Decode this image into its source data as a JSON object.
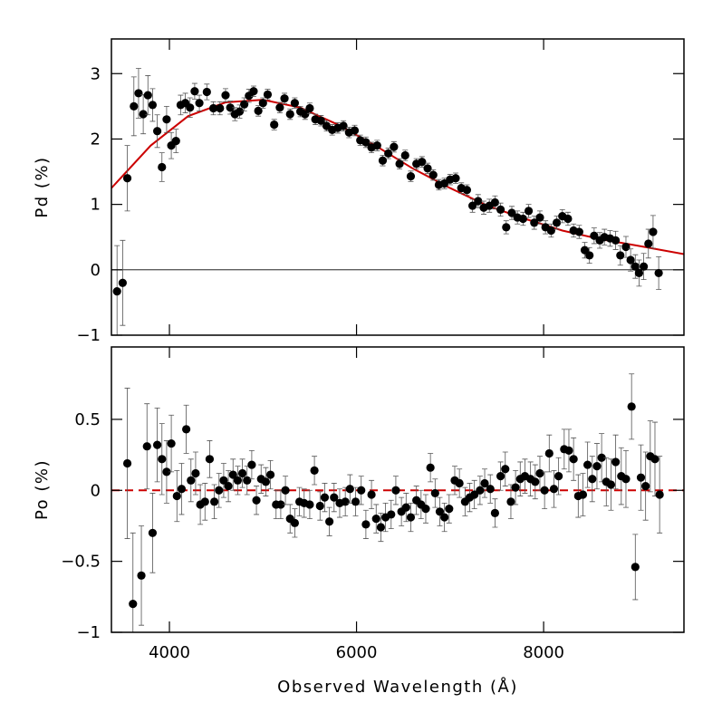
{
  "chart_data": [
    {
      "type": "scatter",
      "ylabel": "Pd (%)",
      "xlim": [
        3380,
        9500
      ],
      "ylim": [
        -1,
        3.53
      ],
      "xticks": [
        4000,
        6000,
        8000
      ],
      "show_xtick_labels": false,
      "yticks": [
        {
          "value": -1,
          "label": "−1"
        },
        0,
        1,
        2,
        3
      ],
      "hline": 0,
      "color": "#000000",
      "x": [
        3440,
        3500,
        3550,
        3620,
        3670,
        3720,
        3770,
        3820,
        3870,
        3920,
        3970,
        4020,
        4070,
        4120,
        4170,
        4220,
        4270,
        4320,
        4400,
        4470,
        4540,
        4600,
        4650,
        4700,
        4750,
        4800,
        4850,
        4900,
        4950,
        5000,
        5050,
        5120,
        5180,
        5230,
        5290,
        5340,
        5400,
        5450,
        5500,
        5560,
        5620,
        5680,
        5740,
        5800,
        5860,
        5920,
        5980,
        6040,
        6100,
        6160,
        6220,
        6280,
        6340,
        6400,
        6460,
        6520,
        6580,
        6640,
        6700,
        6760,
        6820,
        6880,
        6940,
        7000,
        7060,
        7120,
        7180,
        7240,
        7300,
        7360,
        7420,
        7480,
        7540,
        7600,
        7660,
        7720,
        7780,
        7840,
        7900,
        7960,
        8020,
        8080,
        8140,
        8200,
        8260,
        8320,
        8380,
        8440,
        8490,
        8540,
        8600,
        8650,
        8710,
        8770,
        8820,
        8880,
        8930,
        8980,
        9020,
        9070,
        9120,
        9170,
        9230
      ],
      "values": [
        -0.33,
        -0.2,
        1.4,
        2.5,
        2.7,
        2.38,
        2.67,
        2.52,
        2.12,
        1.57,
        2.3,
        1.9,
        1.97,
        2.52,
        2.55,
        2.48,
        2.73,
        2.55,
        2.72,
        2.47,
        2.47,
        2.67,
        2.48,
        2.38,
        2.42,
        2.53,
        2.66,
        2.73,
        2.43,
        2.55,
        2.68,
        2.22,
        2.48,
        2.62,
        2.38,
        2.55,
        2.42,
        2.38,
        2.47,
        2.3,
        2.28,
        2.2,
        2.14,
        2.17,
        2.2,
        2.1,
        2.13,
        1.98,
        1.95,
        1.87,
        1.9,
        1.67,
        1.78,
        1.88,
        1.62,
        1.75,
        1.43,
        1.62,
        1.65,
        1.55,
        1.45,
        1.3,
        1.32,
        1.38,
        1.4,
        1.25,
        1.22,
        0.98,
        1.05,
        0.95,
        0.98,
        1.03,
        0.92,
        0.65,
        0.87,
        0.8,
        0.78,
        0.9,
        0.72,
        0.8,
        0.65,
        0.6,
        0.72,
        0.82,
        0.78,
        0.6,
        0.58,
        0.3,
        0.22,
        0.52,
        0.45,
        0.5,
        0.48,
        0.45,
        0.22,
        0.35,
        0.15,
        0.05,
        -0.05,
        0.05,
        0.4,
        0.58,
        -0.05
      ],
      "errors": [
        0.7,
        0.65,
        0.5,
        0.45,
        0.38,
        0.3,
        0.3,
        0.25,
        0.25,
        0.22,
        0.2,
        0.2,
        0.18,
        0.15,
        0.15,
        0.15,
        0.12,
        0.12,
        0.12,
        0.1,
        0.1,
        0.1,
        0.1,
        0.1,
        0.1,
        0.1,
        0.1,
        0.08,
        0.08,
        0.08,
        0.08,
        0.08,
        0.08,
        0.08,
        0.08,
        0.08,
        0.08,
        0.08,
        0.08,
        0.08,
        0.08,
        0.08,
        0.08,
        0.08,
        0.08,
        0.08,
        0.08,
        0.08,
        0.08,
        0.08,
        0.08,
        0.08,
        0.08,
        0.08,
        0.08,
        0.08,
        0.08,
        0.08,
        0.08,
        0.08,
        0.08,
        0.08,
        0.08,
        0.08,
        0.08,
        0.08,
        0.08,
        0.1,
        0.1,
        0.1,
        0.1,
        0.1,
        0.1,
        0.1,
        0.1,
        0.1,
        0.1,
        0.1,
        0.1,
        0.1,
        0.1,
        0.1,
        0.1,
        0.1,
        0.1,
        0.1,
        0.1,
        0.12,
        0.12,
        0.12,
        0.12,
        0.12,
        0.12,
        0.14,
        0.15,
        0.16,
        0.17,
        0.18,
        0.2,
        0.2,
        0.22,
        0.25,
        0.25
      ],
      "model": {
        "color": "#cc0000",
        "style": "solid",
        "x": [
          3380,
          3800,
          4200,
          4600,
          5000,
          5400,
          5800,
          6200,
          6600,
          7000,
          7400,
          7800,
          8200,
          8600,
          9000,
          9500
        ],
        "values": [
          1.25,
          1.9,
          2.35,
          2.56,
          2.6,
          2.48,
          2.22,
          1.9,
          1.55,
          1.25,
          0.98,
          0.78,
          0.6,
          0.47,
          0.37,
          0.24
        ]
      }
    },
    {
      "type": "scatter",
      "ylabel": "Po (%)",
      "xlabel": "Observed Wavelength (Å)",
      "xlim": [
        3380,
        9500
      ],
      "ylim": [
        -1,
        1.01
      ],
      "xticks": [
        4000,
        6000,
        8000
      ],
      "show_xtick_labels": true,
      "yticks": [
        {
          "value": -1,
          "label": "−1"
        },
        {
          "value": -0.5,
          "label": "−0.5"
        },
        0,
        0.5
      ],
      "color": "#000000",
      "x": [
        3550,
        3610,
        3700,
        3760,
        3820,
        3870,
        3920,
        3970,
        4020,
        4080,
        4130,
        4180,
        4230,
        4280,
        4330,
        4380,
        4430,
        4480,
        4530,
        4580,
        4630,
        4680,
        4730,
        4780,
        4830,
        4880,
        4930,
        4980,
        5030,
        5080,
        5140,
        5190,
        5240,
        5290,
        5340,
        5390,
        5440,
        5500,
        5550,
        5610,
        5660,
        5710,
        5760,
        5820,
        5880,
        5930,
        5990,
        6050,
        6100,
        6160,
        6210,
        6260,
        6310,
        6370,
        6420,
        6480,
        6530,
        6580,
        6640,
        6690,
        6740,
        6790,
        6840,
        6890,
        6940,
        6990,
        7050,
        7100,
        7160,
        7210,
        7260,
        7320,
        7370,
        7430,
        7480,
        7540,
        7590,
        7650,
        7700,
        7750,
        7800,
        7860,
        7910,
        7960,
        8010,
        8060,
        8110,
        8160,
        8220,
        8270,
        8320,
        8370,
        8420,
        8470,
        8520,
        8570,
        8620,
        8670,
        8720,
        8770,
        8830,
        8880,
        8940,
        8980,
        9040,
        9090,
        9140,
        9190,
        9240
      ],
      "values": [
        0.19,
        -0.8,
        -0.6,
        0.31,
        -0.3,
        0.32,
        0.22,
        0.13,
        0.33,
        -0.04,
        0.01,
        0.43,
        0.07,
        0.12,
        -0.1,
        -0.08,
        0.22,
        -0.08,
        0,
        0.07,
        0.03,
        0.11,
        0.07,
        0.12,
        0.07,
        0.18,
        -0.07,
        0.08,
        0.06,
        0.11,
        -0.1,
        -0.1,
        0,
        -0.2,
        -0.23,
        -0.08,
        -0.09,
        -0.1,
        0.14,
        -0.11,
        -0.05,
        -0.22,
        -0.05,
        -0.09,
        -0.08,
        0.01,
        -0.08,
        0,
        -0.24,
        -0.03,
        -0.2,
        -0.26,
        -0.19,
        -0.17,
        0,
        -0.15,
        -0.12,
        -0.19,
        -0.07,
        -0.1,
        -0.13,
        0.16,
        -0.02,
        -0.15,
        -0.19,
        -0.13,
        0.07,
        0.05,
        -0.08,
        -0.05,
        -0.03,
        0,
        0.05,
        0.01,
        -0.16,
        0.1,
        0.15,
        -0.08,
        0.02,
        0.08,
        0.1,
        0.08,
        0.06,
        0.12,
        0,
        0.26,
        0.01,
        0.1,
        0.29,
        0.28,
        0.22,
        -0.04,
        -0.03,
        0.18,
        0.08,
        0.17,
        0.23,
        0.06,
        0.04,
        0.2,
        0.1,
        0.08,
        0.59,
        -0.54,
        0.09,
        0.03,
        0.24,
        0.22,
        -0.03
      ],
      "errors": [
        0.53,
        0.5,
        0.35,
        0.3,
        0.28,
        0.26,
        0.25,
        0.22,
        0.2,
        0.18,
        0.18,
        0.17,
        0.15,
        0.15,
        0.14,
        0.13,
        0.13,
        0.12,
        0.12,
        0.12,
        0.11,
        0.11,
        0.1,
        0.1,
        0.1,
        0.1,
        0.1,
        0.1,
        0.1,
        0.1,
        0.1,
        0.1,
        0.1,
        0.1,
        0.1,
        0.1,
        0.1,
        0.1,
        0.1,
        0.1,
        0.1,
        0.1,
        0.1,
        0.1,
        0.1,
        0.1,
        0.1,
        0.1,
        0.1,
        0.1,
        0.1,
        0.1,
        0.1,
        0.1,
        0.1,
        0.1,
        0.1,
        0.1,
        0.1,
        0.1,
        0.1,
        0.1,
        0.1,
        0.1,
        0.1,
        0.1,
        0.1,
        0.1,
        0.1,
        0.1,
        0.1,
        0.1,
        0.1,
        0.1,
        0.1,
        0.1,
        0.12,
        0.12,
        0.12,
        0.12,
        0.12,
        0.12,
        0.12,
        0.12,
        0.13,
        0.13,
        0.13,
        0.13,
        0.14,
        0.15,
        0.15,
        0.15,
        0.15,
        0.16,
        0.16,
        0.16,
        0.17,
        0.17,
        0.18,
        0.19,
        0.2,
        0.2,
        0.23,
        0.23,
        0.23,
        0.24,
        0.25,
        0.26,
        0.27
      ],
      "model": {
        "color": "#cc0000",
        "style": "dashed",
        "x": [
          3380,
          9500
        ],
        "values": [
          0,
          0
        ]
      }
    }
  ]
}
